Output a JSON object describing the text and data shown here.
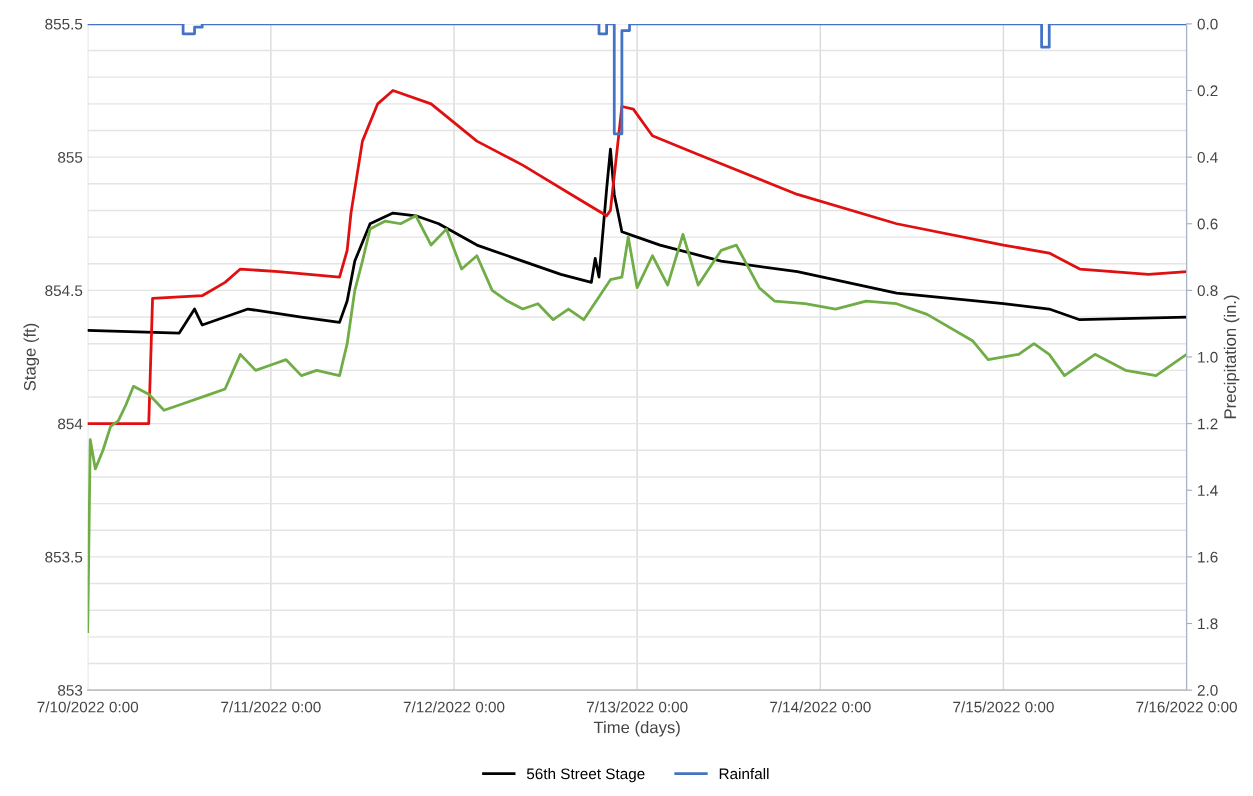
{
  "chart_data": {
    "type": "line",
    "xlabel": "Time (days)",
    "ylabel": "Stage (ft)",
    "y2label": "Precipitation (in.)",
    "xlim": [
      "2022-07-10T00:00",
      "2022-07-16T00:00"
    ],
    "xticks": [
      {
        "value": "2022-07-10T00:00",
        "label": "7/10/2022 0:00"
      },
      {
        "value": "2022-07-11T00:00",
        "label": "7/11/2022 0:00"
      },
      {
        "value": "2022-07-12T00:00",
        "label": "7/12/2022 0:00"
      },
      {
        "value": "2022-07-13T00:00",
        "label": "7/13/2022 0:00"
      },
      {
        "value": "2022-07-14T00:00",
        "label": "7/14/2022 0:00"
      },
      {
        "value": "2022-07-15T00:00",
        "label": "7/15/2022 0:00"
      },
      {
        "value": "2022-07-16T00:00",
        "label": "7/16/2022 0:00"
      }
    ],
    "ylim": [
      853,
      855.5
    ],
    "yticks": [
      853,
      {
        "value": 853.1,
        "label": null
      },
      {
        "value": 853.2,
        "label": null
      },
      {
        "value": 853.3,
        "label": null
      },
      {
        "value": 853.4,
        "label": null
      },
      853.5,
      {
        "value": 853.6,
        "label": null
      },
      {
        "value": 853.7,
        "label": null
      },
      {
        "value": 853.8,
        "label": null
      },
      {
        "value": 853.9,
        "label": null
      },
      854,
      {
        "value": 854.1,
        "label": null
      },
      {
        "value": 854.2,
        "label": null
      },
      {
        "value": 854.3,
        "label": null
      },
      {
        "value": 854.4,
        "label": null
      },
      854.5,
      {
        "value": 854.6,
        "label": null
      },
      {
        "value": 854.7,
        "label": null
      },
      {
        "value": 854.8,
        "label": null
      },
      {
        "value": 854.9,
        "label": null
      },
      855,
      {
        "value": 855.1,
        "label": null
      },
      {
        "value": 855.2,
        "label": null
      },
      {
        "value": 855.3,
        "label": null
      },
      {
        "value": 855.4,
        "label": null
      },
      855.5
    ],
    "y2lim": [
      2.0,
      0.0
    ],
    "y2ticks": [
      {
        "value": 0,
        "label": "0.0"
      },
      {
        "value": 0.2,
        "label": "0.2"
      },
      {
        "value": 0.4,
        "label": "0.4"
      },
      {
        "value": 0.6,
        "label": "0.6"
      },
      {
        "value": 0.8,
        "label": "0.8"
      },
      {
        "value": 1.0,
        "label": "1.0"
      },
      {
        "value": 1.2,
        "label": "1.2"
      },
      {
        "value": 1.4,
        "label": "1.4"
      },
      {
        "value": 1.6,
        "label": "1.6"
      },
      {
        "value": 1.8,
        "label": "1.8"
      },
      {
        "value": 2.0,
        "label": "2.0"
      }
    ],
    "grid": true,
    "legend": "bottom",
    "marker": "none",
    "line_style": "solid",
    "series": [
      {
        "name": "56th Street Stage",
        "color": "#000000",
        "x": [
          "2022-07-10T00:00",
          "2022-07-10T12:00",
          "2022-07-10T14:00",
          "2022-07-10T15:00",
          "2022-07-10T21:00",
          "2022-07-11T04:00",
          "2022-07-11T09:00",
          "2022-07-11T10:00",
          "2022-07-11T11:00",
          "2022-07-11T13:00",
          "2022-07-11T16:00",
          "2022-07-11T19:00",
          "2022-07-11T22:00",
          "2022-07-12T03:00",
          "2022-07-12T09:00",
          "2022-07-12T14:00",
          "2022-07-12T18:00",
          "2022-07-12T18:30",
          "2022-07-12T19:00",
          "2022-07-12T20:00",
          "2022-07-12T20:30",
          "2022-07-12T21:00",
          "2022-07-12T22:00",
          "2022-07-13T00:00",
          "2022-07-13T03:00",
          "2022-07-13T11:00",
          "2022-07-13T21:00",
          "2022-07-14T10:00",
          "2022-07-15T00:00",
          "2022-07-15T06:00",
          "2022-07-15T10:00",
          "2022-07-16T00:00"
        ],
        "values": [
          854.35,
          854.34,
          854.43,
          854.37,
          854.43,
          854.4,
          854.38,
          854.46,
          854.61,
          854.75,
          854.79,
          854.78,
          854.75,
          854.67,
          854.61,
          854.56,
          854.53,
          854.62,
          854.55,
          854.88,
          855.03,
          854.86,
          854.72,
          854.7,
          854.67,
          854.61,
          854.57,
          854.49,
          854.45,
          854.43,
          854.39,
          854.4
        ]
      },
      {
        "color": "#e01010",
        "x": [
          "2022-07-10T00:00",
          "2022-07-10T08:00",
          "2022-07-10T08:30",
          "2022-07-10T15:00",
          "2022-07-10T18:00",
          "2022-07-10T20:00",
          "2022-07-11T01:00",
          "2022-07-11T09:00",
          "2022-07-11T10:00",
          "2022-07-11T10:30",
          "2022-07-11T12:00",
          "2022-07-11T14:00",
          "2022-07-11T16:00",
          "2022-07-11T21:00",
          "2022-07-12T03:00",
          "2022-07-12T09:00",
          "2022-07-12T16:30",
          "2022-07-12T20:00",
          "2022-07-12T20:30",
          "2022-07-12T22:00",
          "2022-07-12T23:30",
          "2022-07-13T02:00",
          "2022-07-13T08:00",
          "2022-07-13T21:00",
          "2022-07-14T10:00",
          "2022-07-15T00:00",
          "2022-07-15T06:00",
          "2022-07-15T10:00",
          "2022-07-15T19:00",
          "2022-07-16T00:00"
        ],
        "values": [
          854.0,
          854.0,
          854.47,
          854.48,
          854.53,
          854.58,
          854.57,
          854.55,
          854.65,
          854.79,
          855.06,
          855.2,
          855.25,
          855.2,
          855.06,
          854.97,
          854.84,
          854.78,
          854.8,
          855.19,
          855.18,
          855.08,
          855.01,
          854.86,
          854.75,
          854.67,
          854.64,
          854.58,
          854.56,
          854.57
        ]
      },
      {
        "color": "#70ad47",
        "x": [
          "2022-07-10T00:00",
          "2022-07-10T00:20",
          "2022-07-10T01:00",
          "2022-07-10T02:00",
          "2022-07-10T03:00",
          "2022-07-10T04:00",
          "2022-07-10T05:00",
          "2022-07-10T06:00",
          "2022-07-10T08:00",
          "2022-07-10T10:00",
          "2022-07-10T12:00",
          "2022-07-10T16:00",
          "2022-07-10T18:00",
          "2022-07-10T20:00",
          "2022-07-10T22:00",
          "2022-07-11T00:00",
          "2022-07-11T02:00",
          "2022-07-11T04:00",
          "2022-07-11T06:00",
          "2022-07-11T09:00",
          "2022-07-11T10:00",
          "2022-07-11T11:00",
          "2022-07-11T12:00",
          "2022-07-11T13:00",
          "2022-07-11T15:00",
          "2022-07-11T17:00",
          "2022-07-11T19:00",
          "2022-07-11T21:00",
          "2022-07-11T23:00",
          "2022-07-12T01:00",
          "2022-07-12T03:00",
          "2022-07-12T05:00",
          "2022-07-12T07:00",
          "2022-07-12T09:00",
          "2022-07-12T11:00",
          "2022-07-12T13:00",
          "2022-07-12T15:00",
          "2022-07-12T17:00",
          "2022-07-12T20:30",
          "2022-07-12T22:00",
          "2022-07-12T22:50",
          "2022-07-13T00:00",
          "2022-07-13T02:00",
          "2022-07-13T04:00",
          "2022-07-13T06:00",
          "2022-07-13T08:00",
          "2022-07-13T11:00",
          "2022-07-13T13:00",
          "2022-07-13T16:00",
          "2022-07-13T18:00",
          "2022-07-13T22:00",
          "2022-07-14T02:00",
          "2022-07-14T06:00",
          "2022-07-14T10:00",
          "2022-07-14T14:00",
          "2022-07-14T20:00",
          "2022-07-14T22:00",
          "2022-07-15T02:00",
          "2022-07-15T04:00",
          "2022-07-15T06:00",
          "2022-07-15T08:00",
          "2022-07-15T12:00",
          "2022-07-15T16:00",
          "2022-07-15T20:00",
          "2022-07-15T23:00",
          "2022-07-16T00:00"
        ],
        "values": [
          853.22,
          853.94,
          853.83,
          853.9,
          853.99,
          854.01,
          854.07,
          854.14,
          854.11,
          854.05,
          854.07,
          854.11,
          854.13,
          854.26,
          854.2,
          854.22,
          854.24,
          854.18,
          854.2,
          854.18,
          854.3,
          854.5,
          854.61,
          854.73,
          854.76,
          854.75,
          854.78,
          854.67,
          854.73,
          854.58,
          854.63,
          854.5,
          854.46,
          854.43,
          854.45,
          854.39,
          854.43,
          854.39,
          854.54,
          854.55,
          854.7,
          854.51,
          854.63,
          854.52,
          854.71,
          854.52,
          854.65,
          854.67,
          854.51,
          854.46,
          854.45,
          854.43,
          854.46,
          854.45,
          854.41,
          854.31,
          854.24,
          854.26,
          854.3,
          854.26,
          854.18,
          854.26,
          854.2,
          854.18,
          854.24,
          854.26
        ]
      },
      {
        "name": "Rainfall",
        "color": "#4472c4",
        "type": "step",
        "axis": "y2",
        "x": [
          "2022-07-10T00:00",
          "2022-07-10T12:30",
          "2022-07-10T14:00",
          "2022-07-10T15:00",
          "2022-07-12T19:00",
          "2022-07-12T20:00",
          "2022-07-12T21:00",
          "2022-07-12T22:00",
          "2022-07-12T23:00",
          "2022-07-15T05:00",
          "2022-07-15T06:00",
          "2022-07-16T00:00"
        ],
        "values": [
          0,
          0.03,
          0.01,
          0,
          0.03,
          0,
          0.33,
          0.02,
          0,
          0.07,
          0,
          0
        ]
      }
    ]
  }
}
